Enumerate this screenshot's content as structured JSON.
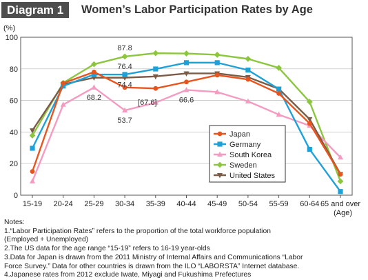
{
  "header": {
    "badge": "Diagram 1",
    "title": "Women’s Labor Participation Rates by Age"
  },
  "chart_data": {
    "type": "line",
    "title": "Women’s Labor Participation Rates by Age",
    "ylabel": "(%)",
    "xlabel": "(Age)",
    "ylim": [
      0,
      100
    ],
    "yticks": [
      0,
      20,
      40,
      60,
      80,
      100
    ],
    "grid": true,
    "legend_position": "lower-right",
    "categories": [
      "15-19",
      "20-24",
      "25-29",
      "30-34",
      "35-39",
      "40-44",
      "45-49",
      "50-54",
      "55-59",
      "60-64",
      "65 and over"
    ],
    "series": [
      {
        "name": "Japan",
        "color": "#e8541e",
        "marker": "circle",
        "values": [
          15.0,
          70.9,
          78.0,
          68.2,
          67.6,
          71.7,
          76.0,
          73.3,
          64.4,
          45.4,
          13.2
        ]
      },
      {
        "name": "Germany",
        "color": "#1da1d8",
        "marker": "square",
        "values": [
          29.7,
          69.1,
          76.4,
          76.4,
          79.9,
          83.9,
          83.9,
          79.2,
          67.2,
          29.0,
          2.3
        ]
      },
      {
        "name": "South Korea",
        "color": "#f59ac0",
        "marker": "triangle",
        "values": [
          8.8,
          57.3,
          68.2,
          53.7,
          58.6,
          66.6,
          65.3,
          59.4,
          51.0,
          44.0,
          23.9
        ]
      },
      {
        "name": "Sweden",
        "color": "#8cc63f",
        "marker": "diamond",
        "values": [
          37.8,
          71.1,
          82.9,
          87.8,
          89.9,
          89.7,
          88.9,
          86.3,
          80.6,
          59.1,
          8.8
        ]
      },
      {
        "name": "United States",
        "color": "#7b5b45",
        "marker": "triangle-down",
        "values": [
          41.0,
          70.2,
          74.4,
          74.4,
          75.2,
          77.1,
          77.1,
          74.7,
          67.3,
          48.1,
          13.4
        ]
      }
    ],
    "annotations": [
      {
        "text": "87.8",
        "series": "Sweden",
        "category": "30-34"
      },
      {
        "text": "76.4",
        "series": "Germany",
        "category": "30-34"
      },
      {
        "text": "74.4",
        "series": "United States",
        "category": "30-34"
      },
      {
        "text": "[67.6]",
        "series": "Japan",
        "category": "35-39"
      },
      {
        "text": "68.2",
        "series": "South Korea",
        "category": "25-29"
      },
      {
        "text": "53.7",
        "series": "South Korea",
        "category": "30-34"
      },
      {
        "text": "66.6",
        "series": "South Korea",
        "category": "40-44"
      }
    ]
  },
  "notes": [
    "Notes:",
    "1.“Labor Participation Rates” refers to the proportion of the total workforce population",
    "(Employed + Unemployed)",
    "2.The US data for the age range “15-19” refers to 16-19 year-olds",
    "3.Data for Japan is drawn from the 2011 Ministry of Internal Affairs and Communications “Labor",
    "Force Survey.” Data for other countries is drawn from the ILO “LABORSTA” Internet database.",
    "4.Japanese rates from 2012 exclude Iwate, Miyagi and Fukushima Prefectures"
  ]
}
